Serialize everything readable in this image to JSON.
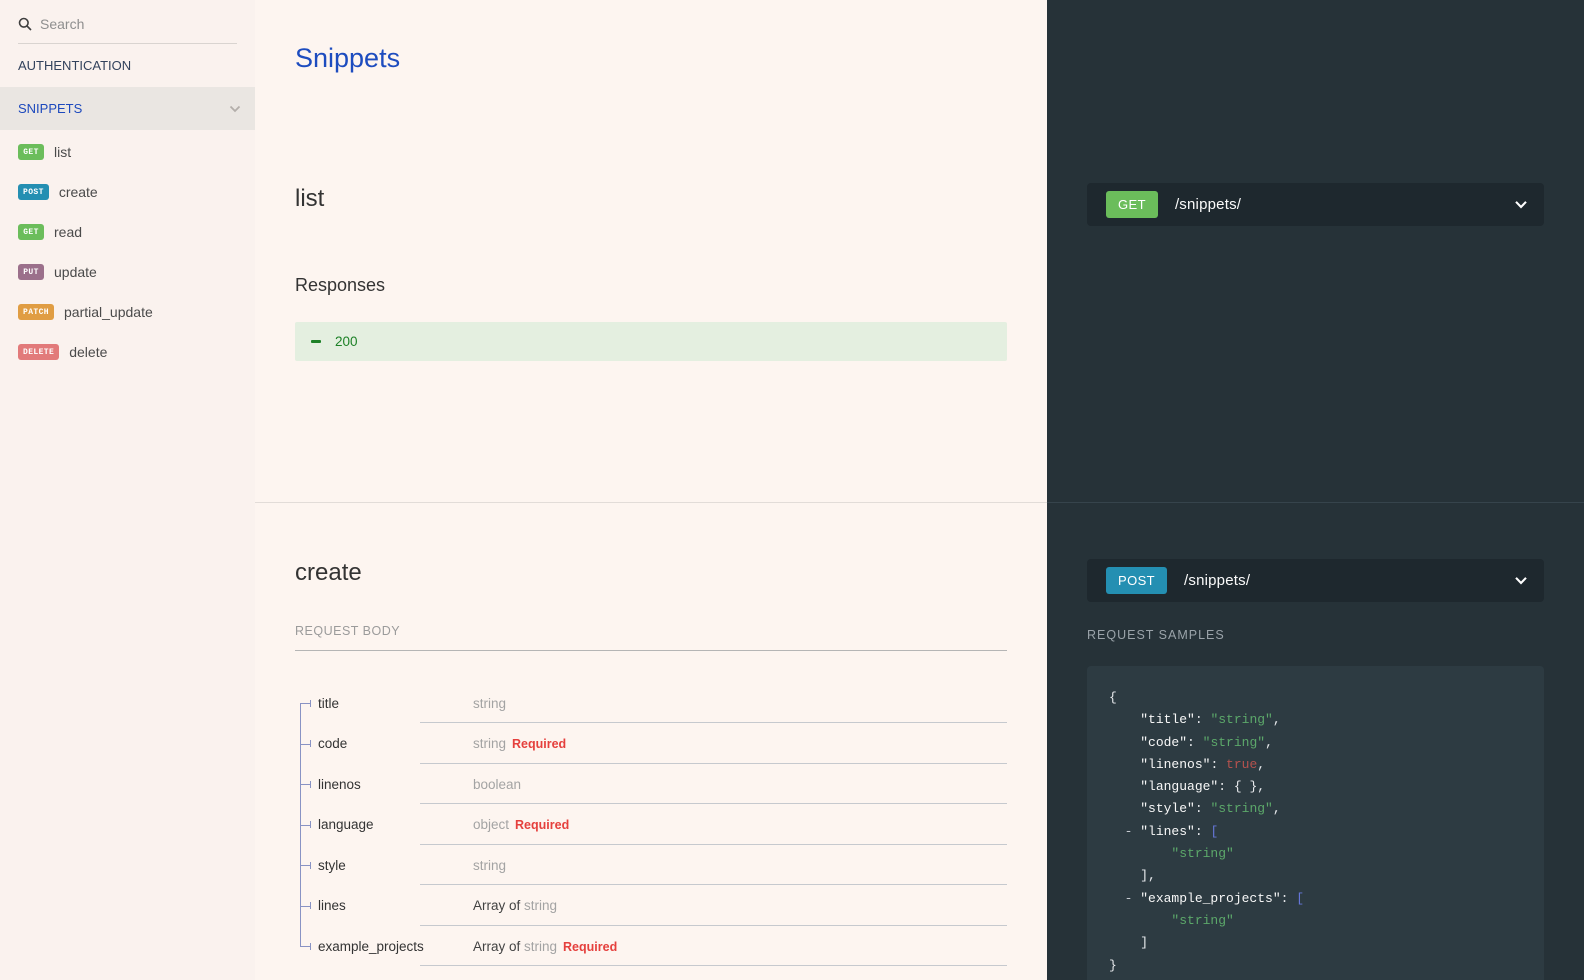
{
  "method_colors": {
    "GET": "#6bbd5b",
    "POST": "#248fb2",
    "PUT": "#9b708b",
    "PATCH": "#e09d43",
    "DELETE": "#e27a7a"
  },
  "sidebar": {
    "search": {
      "placeholder": "Search"
    },
    "nav": [
      {
        "label": "AUTHENTICATION"
      },
      {
        "label": "SNIPPETS"
      }
    ],
    "operations": [
      {
        "method": "GET",
        "label": "list"
      },
      {
        "method": "POST",
        "label": "create"
      },
      {
        "method": "GET",
        "label": "read"
      },
      {
        "method": "PUT",
        "label": "update"
      },
      {
        "method": "PATCH",
        "label": "partial_update"
      },
      {
        "method": "DELETE",
        "label": "delete"
      }
    ]
  },
  "content": {
    "page_title": "Snippets",
    "list_section": {
      "title": "list",
      "responses_label": "Responses",
      "responses": [
        {
          "code": "200",
          "color": "#1d8127"
        }
      ]
    },
    "create_section": {
      "title": "create",
      "request_body_label": "REQUEST BODY",
      "required_label": "Required",
      "fields": [
        {
          "name": "title",
          "type_prefix": "",
          "type": "string",
          "required": false
        },
        {
          "name": "code",
          "type_prefix": "",
          "type": "string",
          "required": true
        },
        {
          "name": "linenos",
          "type_prefix": "",
          "type": "boolean",
          "required": false
        },
        {
          "name": "language",
          "type_prefix": "",
          "type": "object",
          "required": true
        },
        {
          "name": "style",
          "type_prefix": "",
          "type": "string",
          "required": false
        },
        {
          "name": "lines",
          "type_prefix": "Array of ",
          "type": "string",
          "required": false
        },
        {
          "name": "example_projects",
          "type_prefix": "Array of ",
          "type": "string",
          "required": true
        }
      ]
    }
  },
  "right_panel": {
    "get_operation": {
      "method": "GET",
      "path": "/snippets/"
    },
    "post_operation": {
      "method": "POST",
      "path": "/snippets/"
    },
    "request_samples_label": "REQUEST SAMPLES",
    "code_sample_lines": [
      [
        [
          "p",
          "{"
        ]
      ],
      [
        [
          "p",
          "    "
        ],
        [
          "k",
          "\"title\""
        ],
        [
          "p",
          ": "
        ],
        [
          "s",
          "\"string\""
        ],
        [
          "p",
          ","
        ]
      ],
      [
        [
          "p",
          "    "
        ],
        [
          "k",
          "\"code\""
        ],
        [
          "p",
          ": "
        ],
        [
          "s",
          "\"string\""
        ],
        [
          "p",
          ","
        ]
      ],
      [
        [
          "p",
          "    "
        ],
        [
          "k",
          "\"linenos\""
        ],
        [
          "p",
          ": "
        ],
        [
          "b",
          "true"
        ],
        [
          "p",
          ","
        ]
      ],
      [
        [
          "p",
          "    "
        ],
        [
          "k",
          "\"language\""
        ],
        [
          "p",
          ": { },"
        ]
      ],
      [
        [
          "p",
          "    "
        ],
        [
          "k",
          "\"style\""
        ],
        [
          "p",
          ": "
        ],
        [
          "s",
          "\"string\""
        ],
        [
          "p",
          ","
        ]
      ],
      [
        [
          "c",
          "  - "
        ],
        [
          "k",
          "\"lines\""
        ],
        [
          "p",
          ": "
        ],
        [
          "br",
          "["
        ]
      ],
      [
        [
          "p",
          "        "
        ],
        [
          "s",
          "\"string\""
        ]
      ],
      [
        [
          "p",
          "    ],"
        ]
      ],
      [
        [
          "c",
          "  - "
        ],
        [
          "k",
          "\"example_projects\""
        ],
        [
          "p",
          ": "
        ],
        [
          "br",
          "["
        ]
      ],
      [
        [
          "p",
          "        "
        ],
        [
          "s",
          "\"string\""
        ]
      ],
      [
        [
          "p",
          "    ]"
        ]
      ],
      [
        [
          "p",
          "}"
        ]
      ]
    ]
  }
}
